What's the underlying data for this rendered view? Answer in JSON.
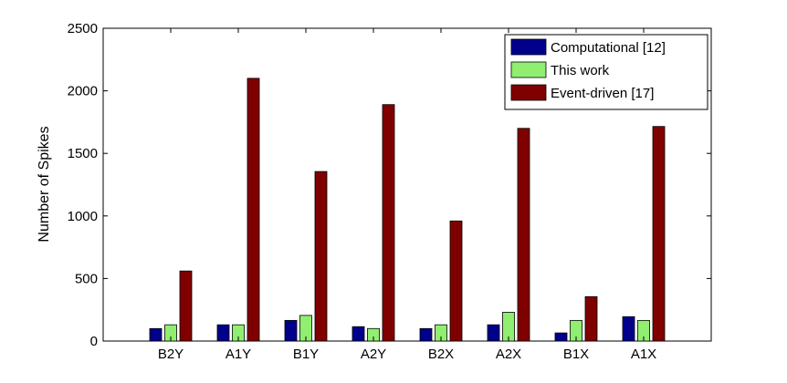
{
  "chart_data": {
    "type": "bar",
    "title": "",
    "xlabel": "",
    "ylabel": "Number of Spikes",
    "categories": [
      "B2Y",
      "A1Y",
      "B1Y",
      "A2Y",
      "B2X",
      "A2X",
      "B1X",
      "A1X"
    ],
    "series": [
      {
        "name": "Computational [12]",
        "color": "#00008B",
        "values": [
          100,
          130,
          165,
          115,
          100,
          130,
          65,
          195
        ]
      },
      {
        "name": "This work",
        "color": "#90EE70",
        "values": [
          130,
          130,
          205,
          100,
          130,
          230,
          165,
          165
        ]
      },
      {
        "name": "Event-driven [17]",
        "color": "#800000",
        "values": [
          560,
          2100,
          1355,
          1890,
          960,
          1700,
          355,
          1715
        ]
      }
    ],
    "ylim": [
      0,
      2500
    ],
    "yticks": [
      0,
      500,
      1000,
      1500,
      2000,
      2500
    ],
    "grid": false,
    "legend": "top-right"
  }
}
